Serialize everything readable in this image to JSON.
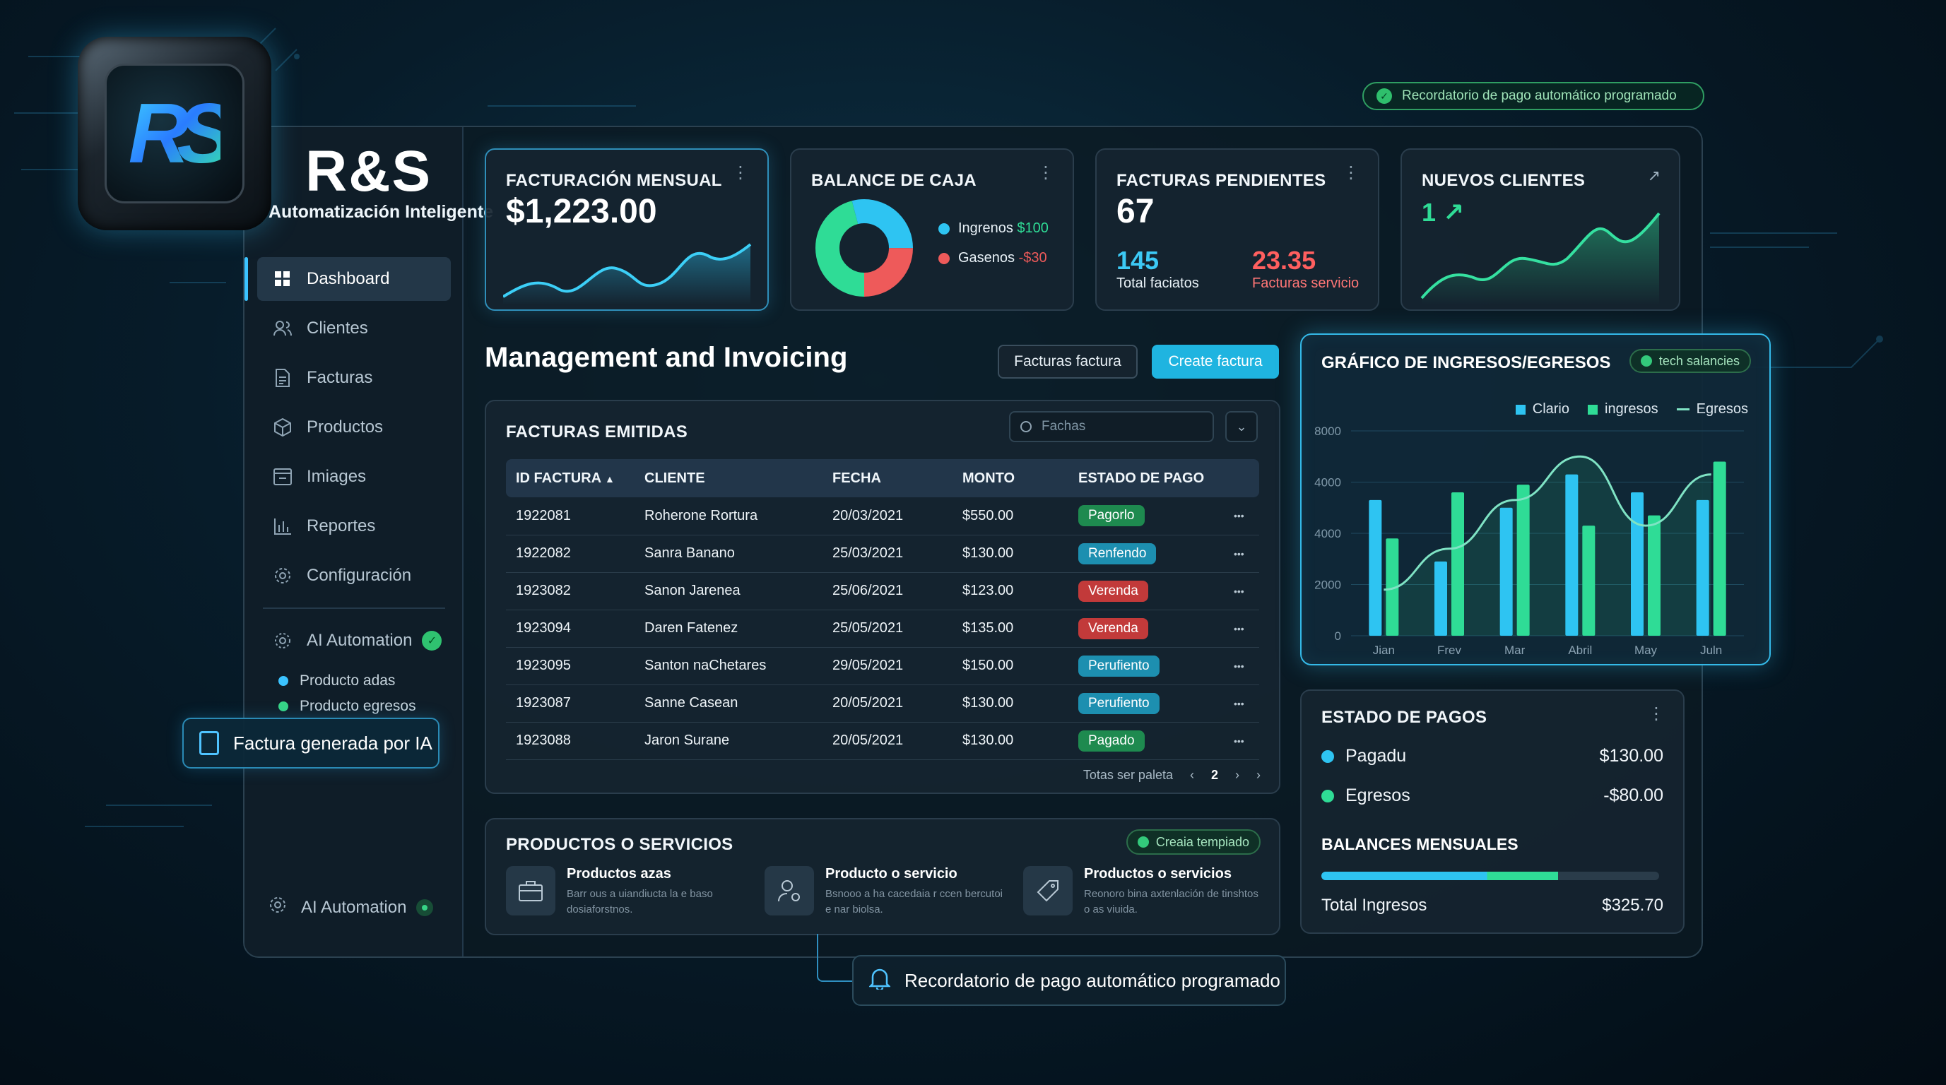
{
  "brand": {
    "name": "R&S",
    "tagline": "Automatización Inteligente",
    "logo_letters": "RS"
  },
  "top_toast": {
    "text": "Recordatorio de pago automático programado",
    "icon": "check-circle-icon"
  },
  "sidebar": {
    "items": [
      {
        "label": "Dashboard",
        "icon": "grid-icon",
        "active": true
      },
      {
        "label": "Clientes",
        "icon": "users-icon"
      },
      {
        "label": "Facturas",
        "icon": "invoice-icon"
      },
      {
        "label": "Productos",
        "icon": "box-icon"
      },
      {
        "label": "Imiages",
        "icon": "image-icon"
      },
      {
        "label": "Reportes",
        "icon": "bar-chart-icon"
      },
      {
        "label": "Configuración",
        "icon": "gear-icon"
      }
    ],
    "ai_automation": {
      "label": "AI Automation",
      "status_icon": "check-circle-icon"
    },
    "sub_items": [
      {
        "label": "Producto adas",
        "color": "#3bc3ff"
      },
      {
        "label": "Producto egresos",
        "color": "#37d486"
      }
    ],
    "ia_card": "Factura generada por IA",
    "bottom_ai": "AI Automation"
  },
  "kpi": {
    "facturacion": {
      "title": "FACTURACIÓN MENSUAL",
      "value": "$1,223.00"
    },
    "balance": {
      "title": "BALANCE DE CAJA",
      "ingresos_label": "Ingrenos",
      "ingresos_value": "$100",
      "gastos_label": "Gasenos",
      "gastos_value": "-$30",
      "colors": {
        "ingresos": "#2ec4f2",
        "gastos": "#ee5a5a",
        "other": "#2fdc96"
      }
    },
    "pendientes": {
      "title": "FACTURAS PENDIENTES",
      "value": "67",
      "total_value": "145",
      "total_label": "Total faciatos",
      "sub_value": "23.35",
      "sub_label": "Facturas servicio"
    },
    "clientes": {
      "title": "NUEVOS CLIENTES",
      "value": "1",
      "arrow": "↗"
    }
  },
  "management": {
    "title": "Management and Invoicing",
    "btn_secondary": "Facturas factura",
    "btn_primary": "Create factura"
  },
  "invoices": {
    "title": "FACTURAS EMITIDAS",
    "search_placeholder": "Fachas",
    "columns": [
      "ID FACTURA",
      "CLIENTE",
      "FECHA",
      "MONTO",
      "ESTADO DE PAGO"
    ],
    "rows": [
      {
        "id": "1922081",
        "cliente": "Roherone Rortura",
        "fecha": "20/03/2021",
        "monto": "$550.00",
        "estado": "Pagorlo",
        "color": "#1e8a4f"
      },
      {
        "id": "1922082",
        "cliente": "Sanra Banano",
        "fecha": "25/03/2021",
        "monto": "$130.00",
        "estado": "Renfendo",
        "color": "#1d8fb0"
      },
      {
        "id": "1923082",
        "cliente": "Sanon Jarenea",
        "fecha": "25/06/2021",
        "monto": "$123.00",
        "estado": "Verenda",
        "color": "#c23a3a"
      },
      {
        "id": "1923094",
        "cliente": "Daren Fatenez",
        "fecha": "25/05/2021",
        "monto": "$135.00",
        "estado": "Verenda",
        "color": "#c23a3a"
      },
      {
        "id": "1923095",
        "cliente": "Santon naChetares",
        "fecha": "29/05/2021",
        "monto": "$150.00",
        "estado": "Perufiento",
        "color": "#1d8fb0"
      },
      {
        "id": "1923087",
        "cliente": "Sanne Casean",
        "fecha": "20/05/2021",
        "monto": "$130.00",
        "estado": "Perufiento",
        "color": "#1d8fb0"
      },
      {
        "id": "1923088",
        "cliente": "Jaron Surane",
        "fecha": "20/05/2021",
        "monto": "$130.00",
        "estado": "Pagado",
        "color": "#1e8a4f"
      }
    ],
    "pager_label": "Totas ser paleta",
    "current_page": "2"
  },
  "productos": {
    "title": "PRODUCTOS O SERVICIOS",
    "pill": "Creaia tempiado",
    "items": [
      {
        "title": "Productos azas",
        "desc": "Barr ous a uiandiucta la e baso dosiaforstnos.",
        "icon": "briefcase-icon"
      },
      {
        "title": "Producto o servicio",
        "desc": "Bsnooo a ha cacedaia r ccen bercutoi e nar biolsa.",
        "icon": "user-gear-icon"
      },
      {
        "title": "Productos o servicios",
        "desc": "Reonoro bina axtenlación de tinshtos o as viuida.",
        "icon": "tag-icon"
      }
    ]
  },
  "chart_data": {
    "type": "bar",
    "title": "GRÁFICO DE INGRESOS/EGRESOS",
    "pill": "tech salancies",
    "categories": [
      "Jian",
      "Frev",
      "Mar",
      "Abril",
      "May",
      "Juln"
    ],
    "yticks": [
      "0",
      "2000",
      "4000",
      "4000",
      "8000"
    ],
    "ylim": [
      0,
      8000
    ],
    "series": [
      {
        "name": "Clario",
        "color": "#2ec4f2",
        "values": [
          5300,
          2900,
          5000,
          6300,
          5600,
          5300
        ]
      },
      {
        "name": "ingresos",
        "color": "#2fdc96",
        "values": [
          3800,
          5600,
          5900,
          4300,
          4700,
          6800
        ]
      },
      {
        "name": "Egresos",
        "color": "#7fe3c4",
        "values": [
          1800,
          3400,
          5300,
          7000,
          4300,
          6300
        ]
      }
    ],
    "legend": "top-right"
  },
  "pagos": {
    "title": "ESTADO DE PAGOS",
    "rows": [
      {
        "label": "Pagadu",
        "value": "$130.00",
        "color": "#2ec4f2"
      },
      {
        "label": "Egresos",
        "value": "-$80.00",
        "color": "#2fdc96"
      }
    ],
    "balances_title": "BALANCES MENSUALES",
    "progress": 0.7,
    "total_label": "Total Ingresos",
    "total_value": "$325.70"
  },
  "reminder": {
    "text": "Recordatorio de pago automático programado",
    "icon": "bell-icon"
  }
}
